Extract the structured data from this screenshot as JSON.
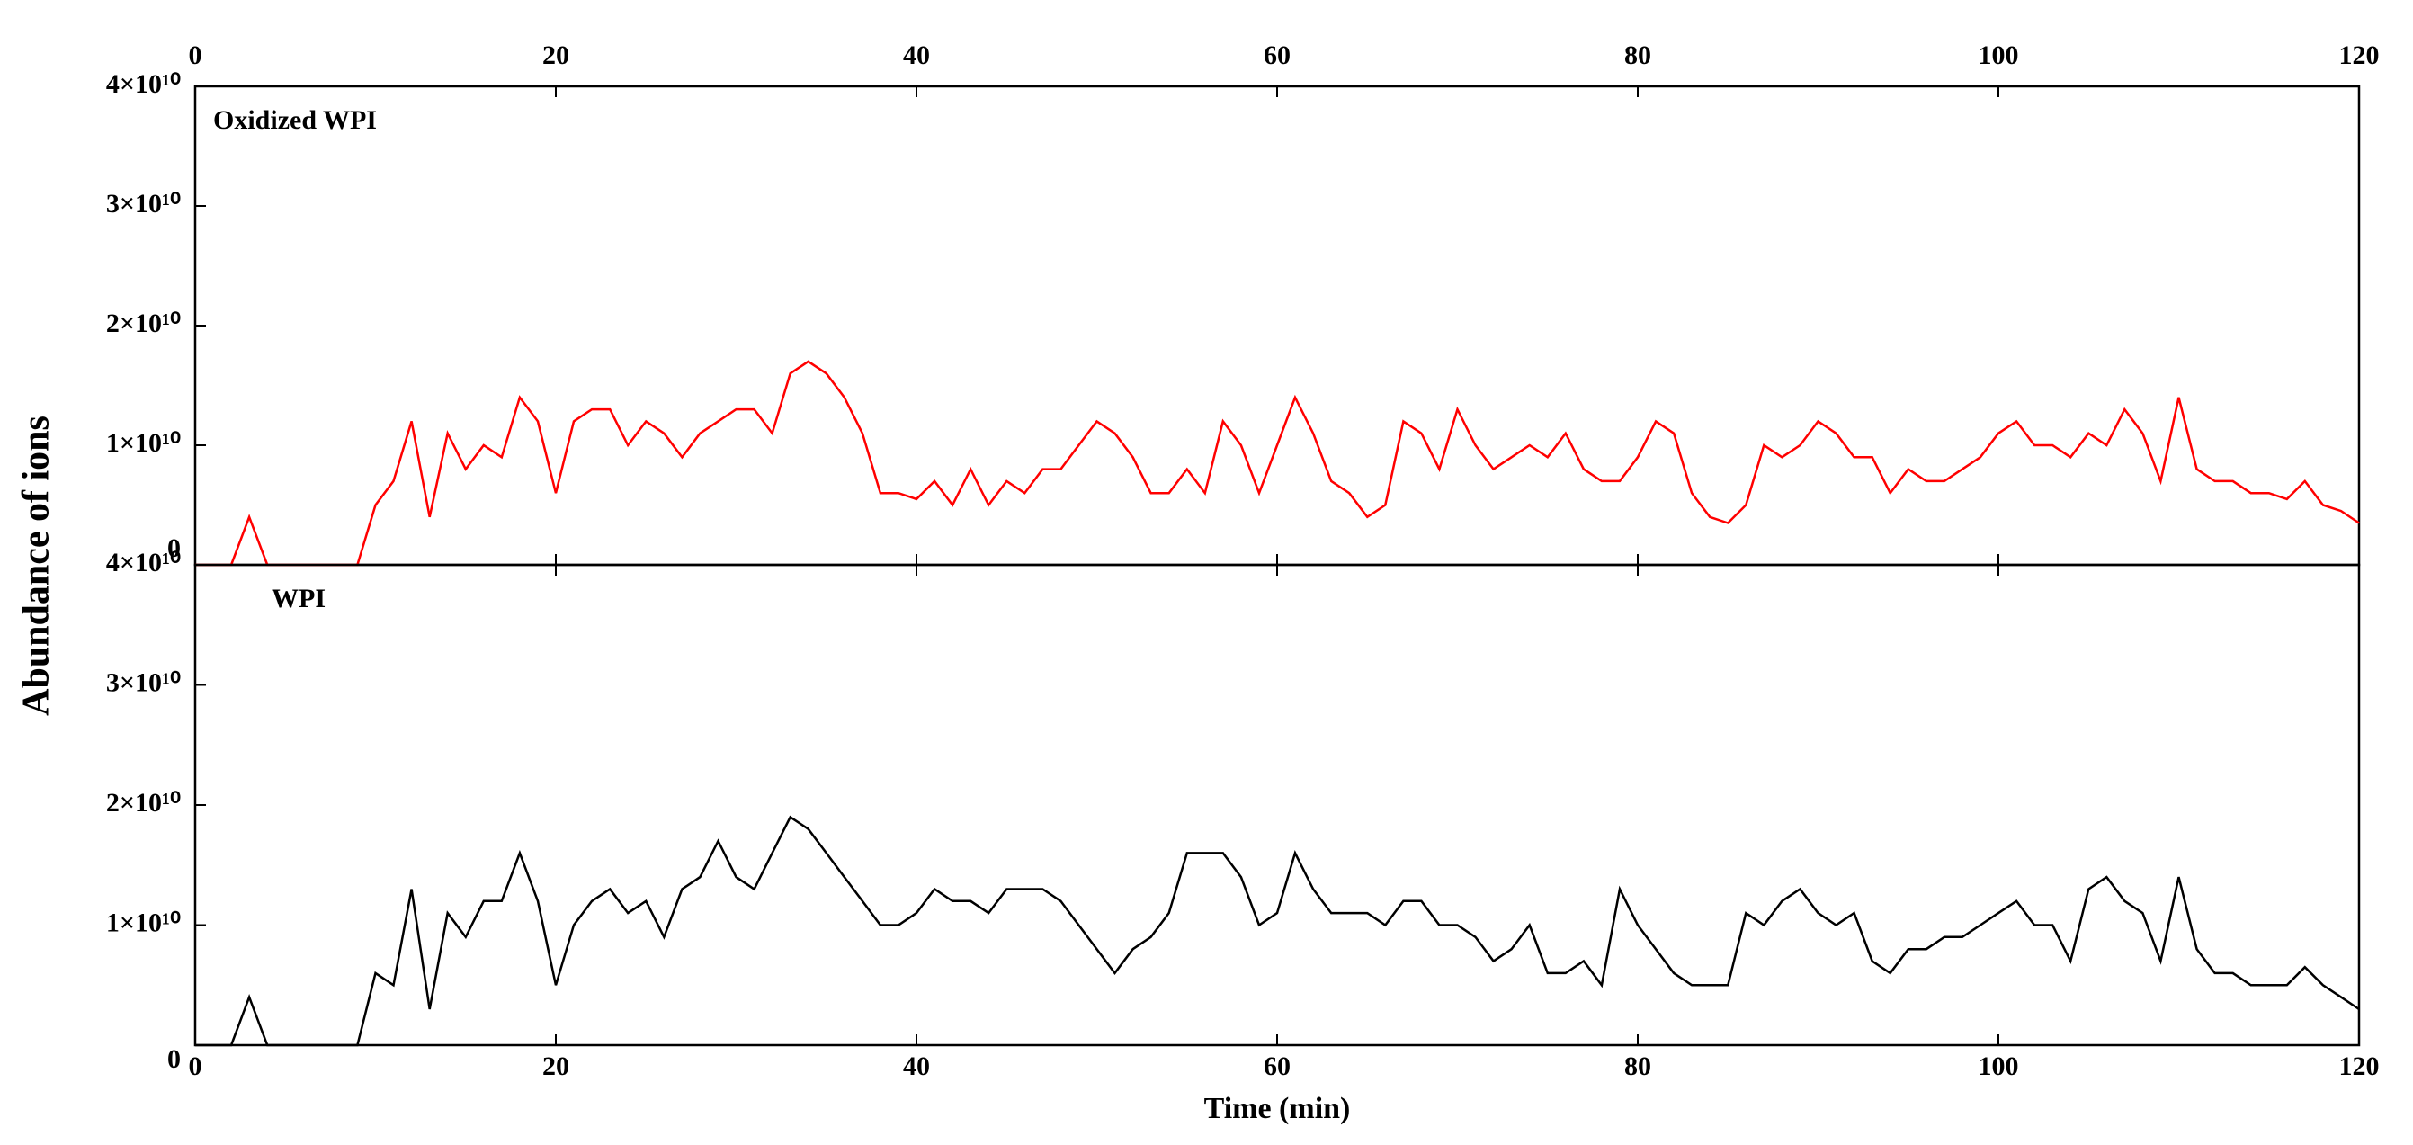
{
  "chart_data": [
    {
      "type": "line",
      "ylabel": "Abundance of ions",
      "x": [
        0,
        1,
        2,
        3,
        4,
        5,
        6,
        7,
        8,
        9,
        10,
        11,
        12,
        13,
        14,
        15,
        16,
        17,
        18,
        19,
        20,
        21,
        22,
        23,
        24,
        25,
        26,
        27,
        28,
        29,
        30,
        31,
        32,
        33,
        34,
        35,
        36,
        37,
        38,
        39,
        40,
        41,
        42,
        43,
        44,
        45,
        46,
        47,
        48,
        49,
        50,
        51,
        52,
        53,
        54,
        55,
        56,
        57,
        58,
        59,
        60,
        61,
        62,
        63,
        64,
        65,
        66,
        67,
        68,
        69,
        70,
        71,
        72,
        73,
        74,
        75,
        76,
        77,
        78,
        79,
        80,
        81,
        82,
        83,
        84,
        85,
        86,
        87,
        88,
        89,
        90,
        91,
        92,
        93,
        94,
        95,
        96,
        97,
        98,
        99,
        100,
        101,
        102,
        103,
        104,
        105,
        106,
        107,
        108,
        109,
        110,
        111,
        112,
        113,
        114,
        115,
        116,
        117,
        118,
        119,
        120
      ],
      "series": [
        {
          "name": "Oxidized WPI",
          "color": "#ff0000",
          "values": [
            0,
            0,
            0,
            4000000000.0,
            0,
            0,
            0,
            0,
            0,
            0,
            5000000000.0,
            7000000000.0,
            12000000000.0,
            4000000000.0,
            11000000000.0,
            8000000000.0,
            10000000000.0,
            9000000000.0,
            14000000000.0,
            12000000000.0,
            6000000000.0,
            12000000000.0,
            13000000000.0,
            13000000000.0,
            10000000000.0,
            12000000000.0,
            11000000000.0,
            9000000000.0,
            11000000000.0,
            12000000000.0,
            13000000000.0,
            13000000000.0,
            11000000000.0,
            16000000000.0,
            17000000000.0,
            16000000000.0,
            14000000000.0,
            11000000000.0,
            6000000000.0,
            6000000000.0,
            5500000000.0,
            7000000000.0,
            5000000000.0,
            8000000000.0,
            5000000000.0,
            7000000000.0,
            6000000000.0,
            8000000000.0,
            8000000000.0,
            10000000000.0,
            12000000000.0,
            11000000000.0,
            9000000000.0,
            6000000000.0,
            6000000000.0,
            8000000000.0,
            6000000000.0,
            12000000000.0,
            10000000000.0,
            6000000000.0,
            10000000000.0,
            14000000000.0,
            11000000000.0,
            7000000000.0,
            6000000000.0,
            4000000000.0,
            5000000000.0,
            12000000000.0,
            11000000000.0,
            8000000000.0,
            13000000000.0,
            10000000000.0,
            8000000000.0,
            9000000000.0,
            10000000000.0,
            9000000000.0,
            11000000000.0,
            8000000000.0,
            7000000000.0,
            7000000000.0,
            9000000000.0,
            12000000000.0,
            11000000000.0,
            6000000000.0,
            4000000000.0,
            3500000000.0,
            5000000000.0,
            10000000000.0,
            9000000000.0,
            10000000000.0,
            12000000000.0,
            11000000000.0,
            9000000000.0,
            9000000000.0,
            6000000000.0,
            8000000000.0,
            7000000000.0,
            7000000000.0,
            8000000000.0,
            9000000000.0,
            11000000000.0,
            12000000000.0,
            10000000000.0,
            10000000000.0,
            9000000000.0,
            11000000000.0,
            10000000000.0,
            13000000000.0,
            11000000000.0,
            7000000000.0,
            14000000000.0,
            8000000000.0,
            7000000000.0,
            7000000000.0,
            6000000000.0,
            6000000000.0,
            5500000000.0,
            7000000000.0,
            5000000000.0,
            4500000000.0,
            3500000000.0
          ]
        }
      ],
      "xlim": [
        0,
        120
      ],
      "xticks": [
        0,
        20,
        40,
        60,
        80,
        100,
        120
      ],
      "ylim": [
        0,
        40000000000.0
      ],
      "yticks": [
        0,
        {
          "value": 10000000000.0,
          "label": "1×10¹⁰"
        },
        {
          "value": 20000000000.0,
          "label": "2×10¹⁰"
        },
        {
          "value": 30000000000.0,
          "label": "3×10¹⁰"
        },
        {
          "value": 40000000000.0,
          "label": "4×10¹⁰"
        }
      ]
    },
    {
      "type": "line",
      "xlabel": "Time (min)",
      "x": [
        0,
        1,
        2,
        3,
        4,
        5,
        6,
        7,
        8,
        9,
        10,
        11,
        12,
        13,
        14,
        15,
        16,
        17,
        18,
        19,
        20,
        21,
        22,
        23,
        24,
        25,
        26,
        27,
        28,
        29,
        30,
        31,
        32,
        33,
        34,
        35,
        36,
        37,
        38,
        39,
        40,
        41,
        42,
        43,
        44,
        45,
        46,
        47,
        48,
        49,
        50,
        51,
        52,
        53,
        54,
        55,
        56,
        57,
        58,
        59,
        60,
        61,
        62,
        63,
        64,
        65,
        66,
        67,
        68,
        69,
        70,
        71,
        72,
        73,
        74,
        75,
        76,
        77,
        78,
        79,
        80,
        81,
        82,
        83,
        84,
        85,
        86,
        87,
        88,
        89,
        90,
        91,
        92,
        93,
        94,
        95,
        96,
        97,
        98,
        99,
        100,
        101,
        102,
        103,
        104,
        105,
        106,
        107,
        108,
        109,
        110,
        111,
        112,
        113,
        114,
        115,
        116,
        117,
        118,
        119,
        120
      ],
      "series": [
        {
          "name": "WPI",
          "color": "#000000",
          "values": [
            0,
            0,
            0,
            4000000000.0,
            0,
            0,
            0,
            0,
            0,
            0,
            6000000000.0,
            5000000000.0,
            13000000000.0,
            3000000000.0,
            11000000000.0,
            9000000000.0,
            12000000000.0,
            12000000000.0,
            16000000000.0,
            12000000000.0,
            5000000000.0,
            10000000000.0,
            12000000000.0,
            13000000000.0,
            11000000000.0,
            12000000000.0,
            9000000000.0,
            13000000000.0,
            14000000000.0,
            17000000000.0,
            14000000000.0,
            13000000000.0,
            16000000000.0,
            19000000000.0,
            18000000000.0,
            16000000000.0,
            14000000000.0,
            12000000000.0,
            10000000000.0,
            10000000000.0,
            11000000000.0,
            13000000000.0,
            12000000000.0,
            12000000000.0,
            11000000000.0,
            13000000000.0,
            13000000000.0,
            13000000000.0,
            12000000000.0,
            10000000000.0,
            8000000000.0,
            6000000000.0,
            8000000000.0,
            9000000000.0,
            11000000000.0,
            16000000000.0,
            16000000000.0,
            16000000000.0,
            14000000000.0,
            10000000000.0,
            11000000000.0,
            16000000000.0,
            13000000000.0,
            11000000000.0,
            11000000000.0,
            11000000000.0,
            10000000000.0,
            12000000000.0,
            12000000000.0,
            10000000000.0,
            10000000000.0,
            9000000000.0,
            7000000000.0,
            8000000000.0,
            10000000000.0,
            6000000000.0,
            6000000000.0,
            7000000000.0,
            5000000000.0,
            13000000000.0,
            10000000000.0,
            8000000000.0,
            6000000000.0,
            5000000000.0,
            5000000000.0,
            5000000000.0,
            11000000000.0,
            10000000000.0,
            12000000000.0,
            13000000000.0,
            11000000000.0,
            10000000000.0,
            11000000000.0,
            7000000000.0,
            6000000000.0,
            8000000000.0,
            8000000000.0,
            9000000000.0,
            9000000000.0,
            10000000000.0,
            11000000000.0,
            12000000000.0,
            10000000000.0,
            10000000000.0,
            7000000000.0,
            13000000000.0,
            14000000000.0,
            12000000000.0,
            11000000000.0,
            7000000000.0,
            14000000000.0,
            8000000000.0,
            6000000000.0,
            6000000000.0,
            5000000000.0,
            5000000000.0,
            5000000000.0,
            6500000000.0,
            5000000000.0,
            4000000000.0,
            3000000000.0
          ]
        }
      ],
      "xlim": [
        0,
        120
      ],
      "xticks": [
        0,
        20,
        40,
        60,
        80,
        100,
        120
      ],
      "ylim": [
        0,
        40000000000.0
      ],
      "yticks": [
        0,
        {
          "value": 10000000000.0,
          "label": "1×10¹⁰"
        },
        {
          "value": 20000000000.0,
          "label": "2×10¹⁰"
        },
        {
          "value": 30000000000.0,
          "label": "3×10¹⁰"
        },
        {
          "value": 40000000000.0,
          "label": "4×10¹⁰"
        }
      ]
    }
  ]
}
